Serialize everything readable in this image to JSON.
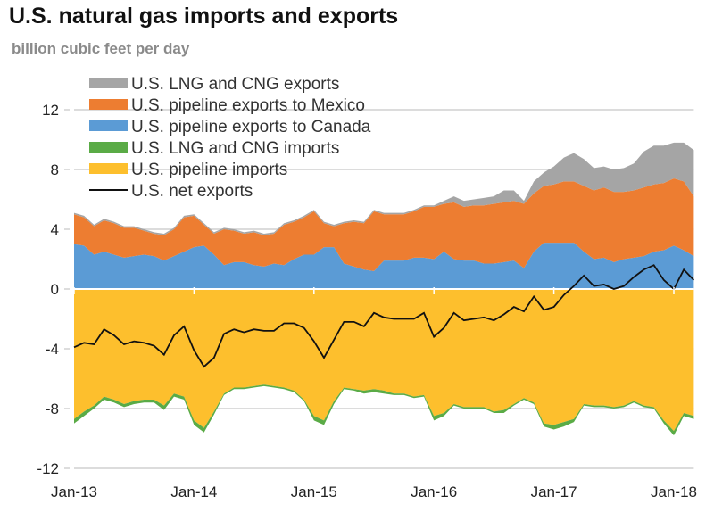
{
  "chart_data": {
    "type": "area",
    "title": "U.S. natural gas imports and exports",
    "subtitle": "billion cubic feet per day",
    "xlabel": "",
    "ylabel": "billion cubic feet per day",
    "ylim": [
      -12,
      12
    ],
    "yticks": [
      12,
      8,
      4,
      0,
      -4,
      -8,
      -12
    ],
    "ytick_labels": [
      "12",
      "8",
      "4",
      "0",
      "-4",
      "-8",
      "-12"
    ],
    "xtick_labels": [
      "Jan-13",
      "Jan-14",
      "Jan-15",
      "Jan-16",
      "Jan-17",
      "Jan-18"
    ],
    "x_start": "Jan-2013",
    "x_frequency": "monthly",
    "x_end": "Mar-2018",
    "grid": true,
    "legend_position": "top-left",
    "series": [
      {
        "name": "U.S. LNG and CNG exports",
        "color": "#a5a5a5",
        "stack": "positive",
        "values": [
          0.1,
          0.1,
          0.1,
          0.1,
          0.1,
          0.1,
          0.1,
          0.1,
          0.1,
          0.1,
          0.1,
          0.1,
          0.1,
          0.1,
          0.1,
          0.1,
          0.1,
          0.1,
          0.1,
          0.1,
          0.1,
          0.1,
          0.1,
          0.1,
          0.1,
          0.1,
          0.1,
          0.1,
          0.1,
          0.1,
          0.1,
          0.1,
          0.1,
          0.1,
          0.1,
          0.1,
          0.1,
          0.2,
          0.4,
          0.4,
          0.4,
          0.5,
          0.5,
          0.8,
          0.7,
          0.2,
          0.8,
          0.9,
          1.2,
          1.6,
          1.9,
          1.8,
          1.5,
          1.4,
          1.5,
          1.6,
          1.8,
          2.4,
          2.6,
          2.5,
          2.4,
          2.6,
          3.1
        ]
      },
      {
        "name": "U.S. pipeline exports to Mexico",
        "color": "#ed7d31",
        "stack": "positive",
        "values": [
          2.0,
          1.9,
          1.9,
          2.1,
          2.1,
          2.0,
          1.9,
          1.6,
          1.5,
          1.7,
          1.8,
          2.3,
          2.1,
          1.4,
          1.4,
          2.4,
          2.1,
          1.9,
          2.2,
          2.1,
          2.0,
          2.7,
          2.5,
          2.5,
          2.9,
          1.6,
          1.4,
          2.7,
          3.0,
          3.1,
          4.0,
          3.1,
          3.1,
          3.1,
          3.1,
          3.4,
          3.5,
          3.2,
          3.8,
          3.6,
          3.7,
          3.9,
          4.0,
          4.0,
          4.0,
          4.3,
          3.9,
          3.8,
          3.9,
          4.1,
          4.1,
          4.4,
          4.6,
          4.7,
          4.7,
          4.5,
          4.5,
          4.6,
          4.5,
          4.5,
          4.5,
          4.6,
          4.0
        ]
      },
      {
        "name": "U.S. pipeline exports to Canada",
        "color": "#5b9bd5",
        "stack": "positive",
        "values": [
          3.0,
          2.9,
          2.3,
          2.5,
          2.3,
          2.1,
          2.2,
          2.3,
          2.2,
          1.9,
          2.2,
          2.5,
          2.8,
          2.9,
          2.3,
          1.6,
          1.8,
          1.8,
          1.6,
          1.5,
          1.7,
          1.6,
          2.0,
          2.3,
          2.3,
          2.8,
          2.8,
          1.7,
          1.5,
          1.3,
          1.2,
          1.9,
          1.9,
          1.9,
          2.1,
          2.1,
          2.0,
          2.5,
          2.0,
          1.9,
          1.9,
          1.7,
          1.7,
          1.8,
          1.9,
          1.4,
          2.5,
          3.1,
          3.1,
          3.1,
          3.1,
          2.5,
          2.0,
          2.1,
          1.8,
          2.0,
          2.1,
          2.2,
          2.5,
          2.6,
          2.9,
          2.6,
          2.2
        ]
      },
      {
        "name": "U.S. LNG and CNG imports",
        "color": "#5aab46",
        "stack": "negative",
        "values": [
          0.3,
          0.3,
          0.2,
          0.2,
          0.2,
          0.2,
          0.2,
          0.2,
          0.2,
          0.3,
          0.2,
          0.2,
          0.3,
          0.3,
          0.2,
          0.1,
          0.1,
          0.1,
          0.1,
          0.1,
          0.1,
          0.1,
          0.1,
          0.1,
          0.3,
          0.3,
          0.2,
          0.1,
          0.1,
          0.2,
          0.2,
          0.2,
          0.1,
          0.1,
          0.1,
          0.1,
          0.3,
          0.2,
          0.1,
          0.1,
          0.1,
          0.1,
          0.1,
          0.2,
          0.1,
          0.1,
          0.1,
          0.2,
          0.3,
          0.3,
          0.2,
          0.1,
          0.1,
          0.1,
          0.1,
          0.1,
          0.1,
          0.1,
          0.1,
          0.2,
          0.3,
          0.2,
          0.2
        ]
      },
      {
        "name": "U.S. pipeline imports",
        "color": "#fdbf2d",
        "stack": "negative",
        "values": [
          8.7,
          8.2,
          7.8,
          7.2,
          7.4,
          7.7,
          7.5,
          7.4,
          7.4,
          7.8,
          7.0,
          7.2,
          8.8,
          9.3,
          8.2,
          7.0,
          6.6,
          6.6,
          6.5,
          6.4,
          6.5,
          6.6,
          6.8,
          7.4,
          8.5,
          8.8,
          7.5,
          6.6,
          6.7,
          6.8,
          6.7,
          6.8,
          7.0,
          7.0,
          7.2,
          7.1,
          8.5,
          8.3,
          7.7,
          7.9,
          7.9,
          7.9,
          8.2,
          8.1,
          7.7,
          7.3,
          7.6,
          9.0,
          9.1,
          8.9,
          8.7,
          7.7,
          7.8,
          7.8,
          7.9,
          7.8,
          7.5,
          7.8,
          7.9,
          8.8,
          9.5,
          8.3,
          8.5
        ]
      },
      {
        "name": "U.S. net exports",
        "color": "#111111",
        "type": "line",
        "derived": "exports minus imports"
      }
    ]
  }
}
